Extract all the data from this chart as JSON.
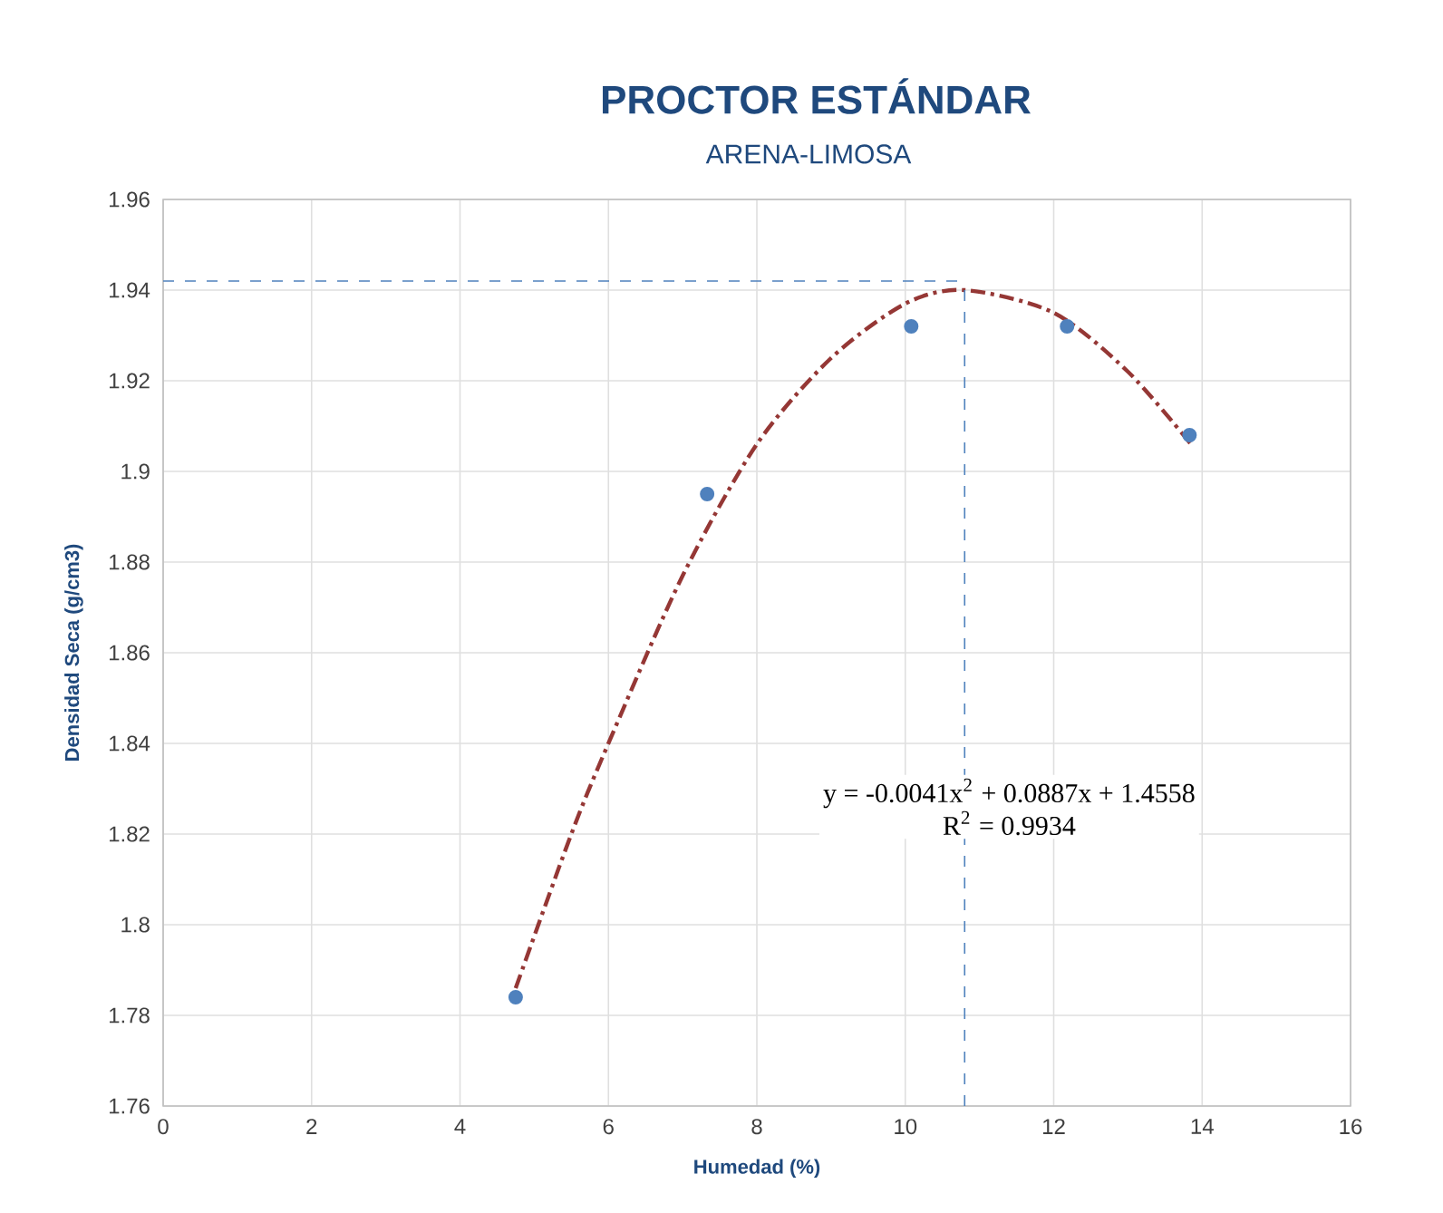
{
  "chart_data": {
    "type": "scatter",
    "title": "PROCTOR ESTÁNDAR",
    "subtitle": "ARENA-LIMOSA",
    "xlabel": "Humedad (%)",
    "ylabel": "Densidad Seca (g/cm3)",
    "series": [
      {
        "color": "#4f81bd",
        "marker": "circle",
        "x": [
          4.75,
          7.33,
          10.08,
          12.18,
          13.83
        ],
        "values": [
          1.784,
          1.895,
          1.932,
          1.932,
          1.908
        ]
      },
      {
        "type": "line",
        "color": "#953735",
        "marker": "none",
        "line_style": "dashdot",
        "x": [
          4.75,
          5.5,
          6,
          7,
          8,
          9,
          10,
          10.8,
          12,
          13,
          13.85
        ],
        "values": [
          1.786,
          1.82,
          1.84,
          1.877,
          1.906,
          1.925,
          1.937,
          1.94,
          1.935,
          1.922,
          1.906
        ]
      }
    ],
    "xlim": [
      0,
      16
    ],
    "xticks": [
      0,
      2,
      4,
      6,
      8,
      10,
      12,
      14,
      16
    ],
    "ylim": [
      1.76,
      1.96
    ],
    "yticks": [
      1.76,
      1.78,
      1.8,
      1.82,
      1.84,
      1.86,
      1.88,
      1.9,
      1.92,
      1.94,
      1.96
    ],
    "grid": true,
    "ref_lines": [
      {
        "axis": "y",
        "value": 1.942,
        "color": "#4f81bd",
        "line_style": "dashed"
      },
      {
        "axis": "x",
        "value": 10.8,
        "color": "#4f81bd",
        "line_style": "dashed"
      }
    ],
    "annotations": [
      "y = -0.0041x$^{2}$ + 0.0887x + 1.4558",
      "R$^{2}$ = 0.9934"
    ]
  }
}
